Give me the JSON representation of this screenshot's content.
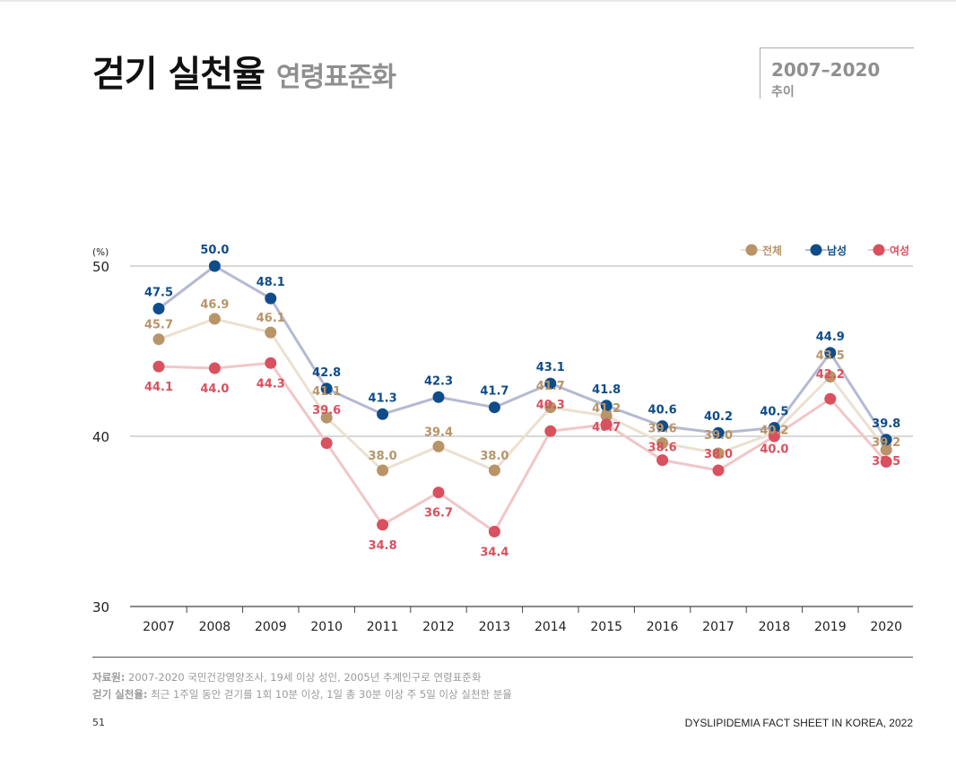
{
  "header": {
    "title": "걷기 실천율",
    "subtitle": "연령표준화",
    "period_range": "2007–2020",
    "period_label": "추이"
  },
  "chart_data": {
    "type": "line",
    "y_unit_label": "(%)",
    "ylim": [
      30,
      50
    ],
    "yticks": [
      30,
      40,
      50
    ],
    "grid": true,
    "legend_position": "top-right",
    "categories": [
      "2007",
      "2008",
      "2009",
      "2010",
      "2011",
      "2012",
      "2013",
      "2014",
      "2015",
      "2016",
      "2017",
      "2018",
      "2019",
      "2020"
    ],
    "series": [
      {
        "name": "전체",
        "color": "#b89468",
        "line_color": "#ece0d0",
        "values": [
          45.7,
          46.9,
          46.1,
          41.1,
          38.0,
          39.4,
          38.0,
          41.7,
          41.2,
          39.6,
          39.0,
          40.2,
          43.5,
          39.2
        ]
      },
      {
        "name": "남성",
        "color": "#0f4c8a",
        "line_color": "#b5b9d2",
        "values": [
          47.5,
          50.0,
          48.1,
          42.8,
          41.3,
          42.3,
          41.7,
          43.1,
          41.8,
          40.6,
          40.2,
          40.5,
          44.9,
          39.8
        ]
      },
      {
        "name": "여성",
        "color": "#d9505f",
        "line_color": "#f1c6c8",
        "values": [
          44.1,
          44.0,
          44.3,
          39.6,
          34.8,
          36.7,
          34.4,
          40.3,
          40.7,
          38.6,
          38.0,
          40.0,
          42.2,
          38.5
        ]
      }
    ]
  },
  "footnotes": {
    "source_label": "자료원:",
    "source_text": "2007-2020 국민건강영양조사, 19세 이상 성인, 2005년 추계인구로 연령표준화",
    "definition_label": "걷기 실천율:",
    "definition_text": "최근 1주일 동안 걷기를 1회 10분 이상, 1일 총 30분 이상 주 5일 이상 실천한 분율"
  },
  "footer": {
    "page_number": "51",
    "publication": "DYSLIPIDEMIA FACT SHEET IN KOREA, 2022"
  }
}
